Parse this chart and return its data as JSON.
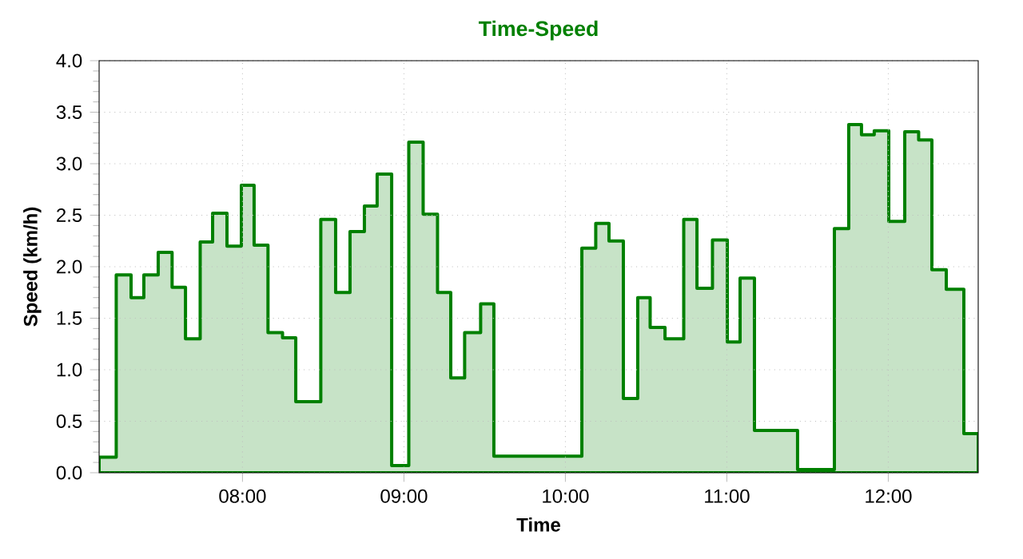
{
  "chart_data": {
    "type": "area",
    "title": "Time-Speed",
    "xlabel": "Time",
    "ylabel": "Speed (km/h)",
    "x": [
      7.112,
      7.218,
      7.31,
      7.389,
      7.478,
      7.564,
      7.647,
      7.738,
      7.815,
      7.904,
      7.993,
      8.072,
      8.158,
      8.248,
      8.33,
      8.485,
      8.577,
      8.666,
      8.755,
      8.834,
      8.924,
      9.03,
      9.119,
      9.208,
      9.29,
      9.376,
      9.475,
      9.557,
      10.102,
      10.188,
      10.27,
      10.359,
      10.448,
      10.525,
      10.617,
      10.733,
      10.815,
      10.911,
      11.003,
      11.082,
      11.171,
      11.438,
      11.666,
      11.755,
      11.834,
      11.913,
      12.003,
      12.102,
      12.188,
      12.27,
      12.359,
      12.468,
      12.557
    ],
    "series": [
      {
        "color": "#008000",
        "values": [
          0.15,
          1.92,
          1.7,
          1.92,
          2.14,
          1.8,
          1.3,
          2.24,
          2.52,
          2.2,
          2.79,
          2.21,
          1.36,
          1.31,
          0.69,
          2.46,
          1.75,
          2.34,
          2.59,
          2.9,
          0.07,
          3.21,
          2.51,
          1.75,
          0.92,
          1.36,
          1.64,
          0.16,
          2.18,
          2.42,
          2.25,
          0.72,
          1.7,
          1.41,
          1.3,
          2.46,
          1.79,
          2.26,
          1.27,
          1.89,
          0.41,
          0.03,
          2.37,
          3.38,
          3.28,
          3.32,
          2.44,
          3.31,
          3.23,
          1.97,
          1.78,
          0.38,
          0.38
        ]
      }
    ],
    "xlim": [
      7.112,
      12.557
    ],
    "ylim": [
      0,
      4
    ],
    "xticks": [
      {
        "value": 8,
        "label": "08:00"
      },
      {
        "value": 9,
        "label": "09:00"
      },
      {
        "value": 10,
        "label": "10:00"
      },
      {
        "value": 11,
        "label": "11:00"
      },
      {
        "value": 12,
        "label": "12:00"
      }
    ],
    "yticks": [
      {
        "value": 0,
        "label": "0.0"
      },
      {
        "value": 0.5,
        "label": "0.5"
      },
      {
        "value": 1,
        "label": "1.0"
      },
      {
        "value": 1.5,
        "label": "1.5"
      },
      {
        "value": 2,
        "label": "2.0"
      },
      {
        "value": 2.5,
        "label": "2.5"
      },
      {
        "value": 3,
        "label": "3.0"
      },
      {
        "value": 3.5,
        "label": "3.5"
      },
      {
        "value": 4,
        "label": "4.0"
      }
    ],
    "grid": true
  }
}
